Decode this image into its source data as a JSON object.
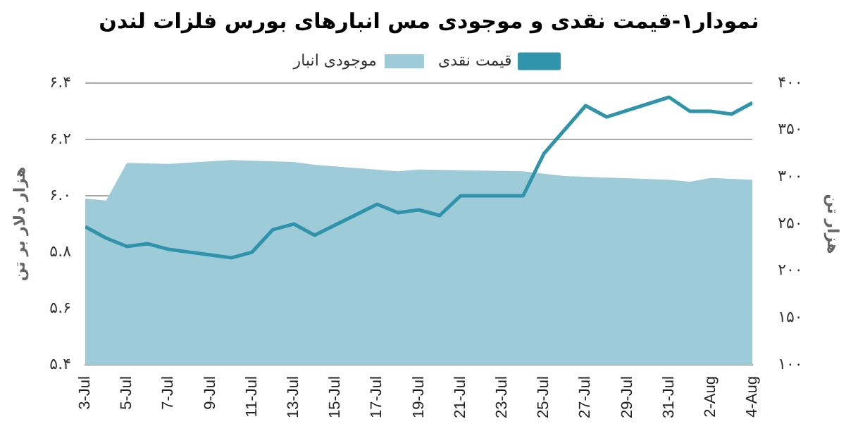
{
  "chart_data": {
    "type": "line",
    "title": "نمودار۱-قیمت نقدی و موجودی مس انبارهای بورس فلزات لندن",
    "ylabel": "هزار دلار بر تن",
    "y2label": "هزار تن",
    "xlim": [
      "--07-03",
      "--08-04"
    ],
    "xticks": [
      {
        "value": "--07-03",
        "label": "3-Jul"
      },
      {
        "value": "--07-05",
        "label": "5-Jul"
      },
      {
        "value": "--07-07",
        "label": "7-Jul"
      },
      {
        "value": "--07-09",
        "label": "9-Jul"
      },
      {
        "value": "--07-11",
        "label": "11-Jul"
      },
      {
        "value": "--07-13",
        "label": "13-Jul"
      },
      {
        "value": "--07-15",
        "label": "15-Jul"
      },
      {
        "value": "--07-17",
        "label": "17-Jul"
      },
      {
        "value": "--07-19",
        "label": "19-Jul"
      },
      {
        "value": "--07-21",
        "label": "21-Jul"
      },
      {
        "value": "--07-23",
        "label": "23-Jul"
      },
      {
        "value": "--07-25",
        "label": "25-Jul"
      },
      {
        "value": "--07-27",
        "label": "27-Jul"
      },
      {
        "value": "--07-29",
        "label": "29-Jul"
      },
      {
        "value": "--07-31",
        "label": "31-Jul"
      },
      {
        "value": "--08-02",
        "label": "2-Aug"
      },
      {
        "value": "--08-04",
        "label": "4-Aug"
      }
    ],
    "ylim": [
      5.4,
      6.4
    ],
    "yticks": [
      {
        "value": 5.4,
        "label": "۵.۴"
      },
      {
        "value": 5.6,
        "label": "۵.۶"
      },
      {
        "value": 5.8,
        "label": "۵.۸"
      },
      {
        "value": 6.0,
        "label": "۶.۰"
      },
      {
        "value": 6.2,
        "label": "۶.۲"
      },
      {
        "value": 6.4,
        "label": "۶.۴"
      }
    ],
    "y2lim": [
      100,
      400
    ],
    "y2ticks": [
      {
        "value": 100,
        "label": "۱۰۰"
      },
      {
        "value": 150,
        "label": "۱۵۰"
      },
      {
        "value": 200,
        "label": "۲۰۰"
      },
      {
        "value": 250,
        "label": "۲۵۰"
      },
      {
        "value": 300,
        "label": "۳۰۰"
      },
      {
        "value": 350,
        "label": "۳۵۰"
      },
      {
        "value": 400,
        "label": "۴۰۰"
      }
    ],
    "grid": "y",
    "legend": "top",
    "marker": "none",
    "line_style": "solid",
    "series": [
      {
        "name": "قیمت نقدی",
        "type": "line",
        "color": "#2e93ab",
        "x": [
          "--07-03",
          "--07-04",
          "--07-05",
          "--07-06",
          "--07-07",
          "--07-10",
          "--07-11",
          "--07-12",
          "--07-13",
          "--07-14",
          "--07-17",
          "--07-18",
          "--07-19",
          "--07-20",
          "--07-21",
          "--07-24",
          "--07-25",
          "--07-27",
          "--07-28",
          "--07-31",
          "--08-01",
          "--08-02",
          "--08-03",
          "--08-04"
        ],
        "values": [
          5.89,
          5.85,
          5.82,
          5.83,
          5.81,
          5.78,
          5.8,
          5.88,
          5.9,
          5.86,
          5.97,
          5.94,
          5.95,
          5.93,
          6.0,
          6.0,
          6.15,
          6.32,
          6.28,
          6.35,
          6.3,
          6.3,
          6.29,
          6.33
        ]
      },
      {
        "name": "موجودی انبار",
        "type": "area",
        "axis": "y2",
        "color": "#9dcbd8",
        "x": [
          "--07-03",
          "--07-04",
          "--07-05",
          "--07-07",
          "--07-10",
          "--07-13",
          "--07-14",
          "--07-18",
          "--07-19",
          "--07-24",
          "--07-26",
          "--07-31",
          "--08-01",
          "--08-02",
          "--08-04"
        ],
        "values": [
          277,
          275,
          315,
          314,
          318,
          316,
          313,
          306,
          308,
          306,
          301,
          297,
          295,
          299,
          297
        ]
      }
    ]
  }
}
